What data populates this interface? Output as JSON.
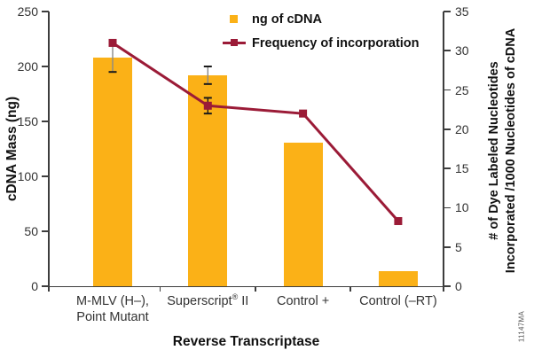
{
  "watermark": "11147MA",
  "chart_data": {
    "type": "bar+line",
    "categories": [
      "M-MLV (H–),\nPoint Mutant",
      "Superscript® II",
      "Control +",
      "Control (–RT)"
    ],
    "series": [
      {
        "name": "ng of cDNA",
        "type": "bar",
        "axis": "left",
        "color": "#FBB117",
        "values": [
          208,
          192,
          131,
          14
        ],
        "errors": [
          13,
          8,
          null,
          null
        ]
      },
      {
        "name": "Frequency of incorporation",
        "type": "line",
        "axis": "right",
        "color": "#9B1B37",
        "values": [
          31,
          23,
          22,
          8.3
        ],
        "errors": [
          null,
          1,
          null,
          null
        ]
      }
    ],
    "x_axis": {
      "label": "Reverse Transcriptase"
    },
    "left_axis": {
      "label": "cDNA Mass (ng)",
      "min": 0,
      "max": 250,
      "tick_step": 50,
      "ticks": [
        250,
        200,
        150,
        100,
        50,
        0
      ]
    },
    "right_axis": {
      "label": "# of Dye Labeled Nucleotides\nIncorporated /1000 Nucleotides of cDNA",
      "min": 0,
      "max": 35,
      "tick_step": 5,
      "ticks": [
        35,
        30,
        25,
        20,
        15,
        10,
        5,
        0
      ]
    },
    "legend": [
      {
        "label": "ng of cDNA",
        "marker": "square",
        "color": "#FBB117"
      },
      {
        "label": "Frequency of incorporation",
        "marker": "line-square",
        "color": "#9B1B37"
      }
    ],
    "grid": false,
    "legend_position": "top-inside"
  }
}
